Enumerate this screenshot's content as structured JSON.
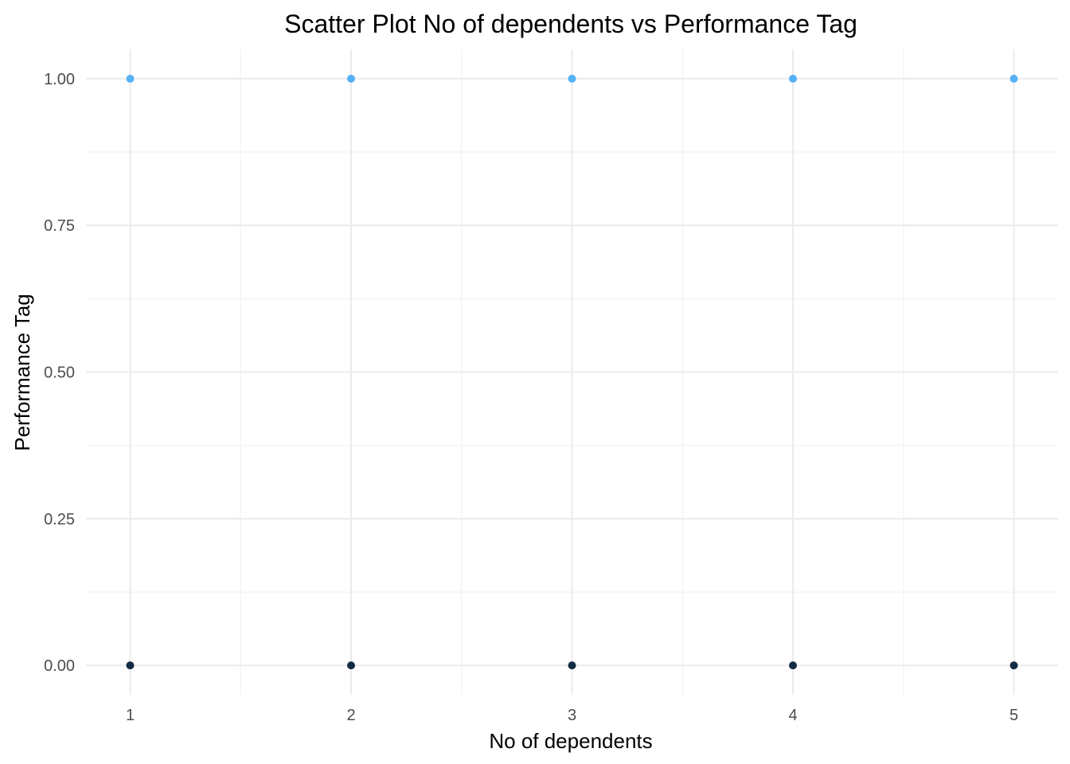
{
  "chart_data": {
    "type": "scatter",
    "title": "Scatter Plot No of dependents vs Performance Tag",
    "xlabel": "No of dependents",
    "ylabel": "Performance Tag",
    "xlim": [
      0.8,
      5.2
    ],
    "ylim": [
      -0.05,
      1.05
    ],
    "x_ticks": [
      1,
      2,
      3,
      4,
      5
    ],
    "x_tick_labels": [
      "1",
      "2",
      "3",
      "4",
      "5"
    ],
    "y_ticks": [
      0,
      0.25,
      0.5,
      0.75,
      1
    ],
    "y_tick_labels": [
      "0.00",
      "0.25",
      "0.50",
      "0.75",
      "1.00"
    ],
    "grid": true,
    "legend": "none",
    "colors": {
      "high": "#56B1F7",
      "low": "#132B43"
    },
    "points": [
      {
        "x": 1,
        "y": 1
      },
      {
        "x": 2,
        "y": 1
      },
      {
        "x": 3,
        "y": 1
      },
      {
        "x": 4,
        "y": 1
      },
      {
        "x": 5,
        "y": 1
      },
      {
        "x": 1,
        "y": 0
      },
      {
        "x": 2,
        "y": 0
      },
      {
        "x": 3,
        "y": 0
      },
      {
        "x": 4,
        "y": 0
      },
      {
        "x": 5,
        "y": 0
      }
    ]
  }
}
